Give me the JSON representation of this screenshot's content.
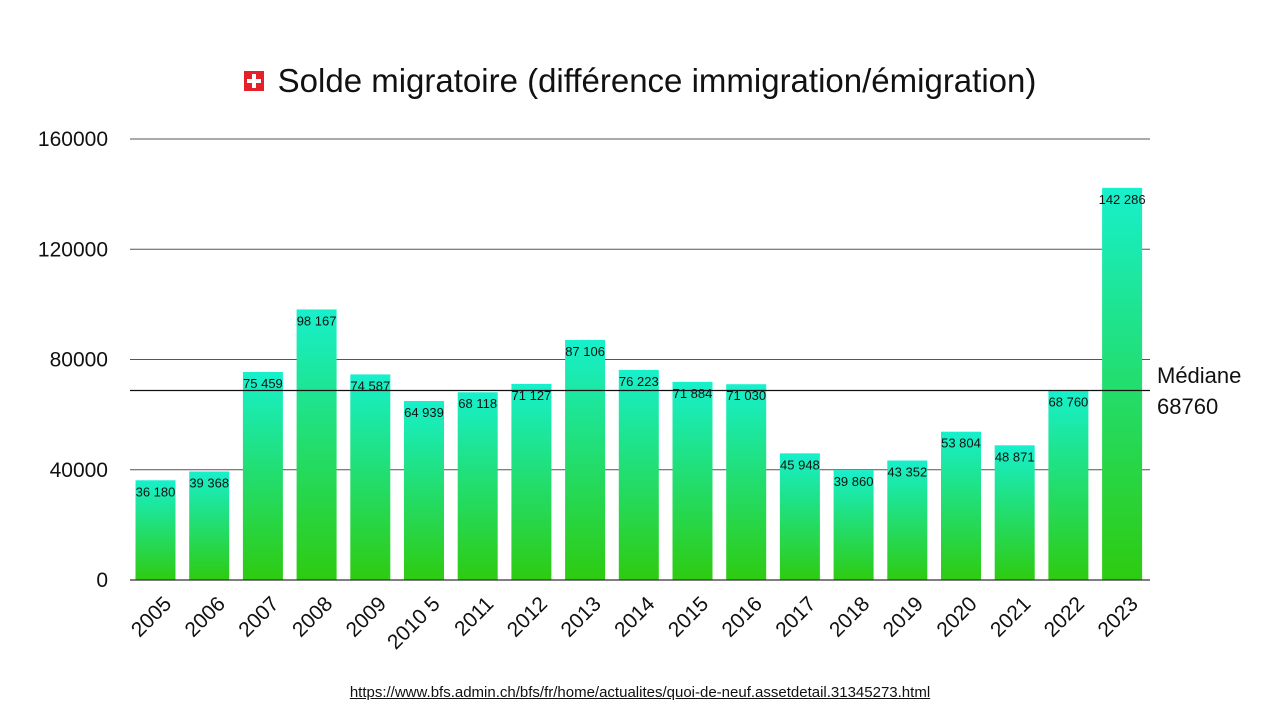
{
  "header": {
    "flag_icon": "swiss-flag-icon",
    "title": "Solde migratoire (différence immigration/émigration)"
  },
  "chart_data": {
    "type": "bar",
    "title": "Solde migratoire (différence immigration/émigration)",
    "categories": [
      "2005",
      "2006",
      "2007",
      "2008",
      "2009",
      "2010 5",
      "2011",
      "2012",
      "2013",
      "2014",
      "2015",
      "2016",
      "2017",
      "2018",
      "2019",
      "2020",
      "2021",
      "2022",
      "2023"
    ],
    "values": [
      36180,
      39368,
      75459,
      98167,
      74587,
      64939,
      68118,
      71127,
      87106,
      76223,
      71884,
      71030,
      45948,
      39860,
      43352,
      53804,
      48871,
      68760,
      142286
    ],
    "value_labels": [
      "36 180",
      "39 368",
      "75 459",
      "98 167",
      "74 587",
      "64 939",
      "68 118",
      "71 127",
      "87 106",
      "76 223",
      "71 884",
      "71 030",
      "45 948",
      "39 860",
      "43 352",
      "53 804",
      "48 871",
      "68 760",
      "142 286"
    ],
    "ylim": [
      0,
      160000
    ],
    "yticks": [
      0,
      40000,
      80000,
      120000,
      160000
    ],
    "ytick_labels": [
      "0",
      "40000",
      "80000",
      "120000",
      "160000"
    ],
    "xlabel": "",
    "ylabel": "",
    "grid": true,
    "bar_gradient": {
      "top": "#17f0cc",
      "bottom": "#2ecb10"
    },
    "reference_line": {
      "value": 68760,
      "label_line1": "Médiane",
      "label_line2": "68760"
    }
  },
  "footer": {
    "source_url": "https://www.bfs.admin.ch/bfs/fr/home/actualites/quoi-de-neuf.assetdetail.31345273.html"
  }
}
